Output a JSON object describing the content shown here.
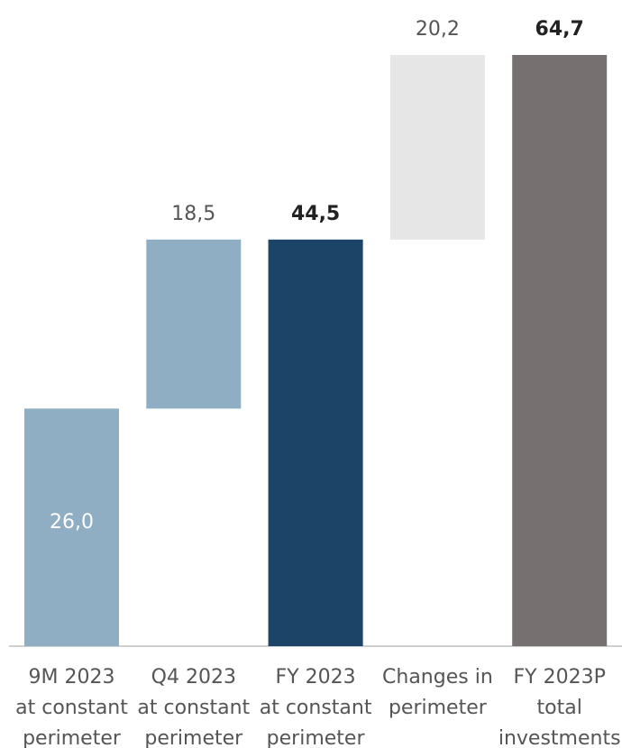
{
  "chart_data": {
    "type": "waterfall",
    "categories": [
      [
        "9M 2023",
        "at constant",
        "perimeter"
      ],
      [
        "Q4 2023",
        "at constant",
        "perimeter"
      ],
      [
        "FY 2023",
        "at constant",
        "perimeter"
      ],
      [
        "Changes in",
        "perimeter"
      ],
      [
        "FY 2023P",
        "total",
        "investments"
      ]
    ],
    "values": [
      26.0,
      18.5,
      44.5,
      20.2,
      64.7
    ],
    "value_labels": [
      "26,0",
      "18,5",
      "44,5",
      "20,2",
      "64,7"
    ],
    "kinds": [
      "delta",
      "delta",
      "total",
      "delta",
      "total"
    ],
    "colors": [
      "#8fadc3",
      "#8fadc3",
      "#1c4466",
      "#e6e6e6",
      "#767170"
    ]
  }
}
